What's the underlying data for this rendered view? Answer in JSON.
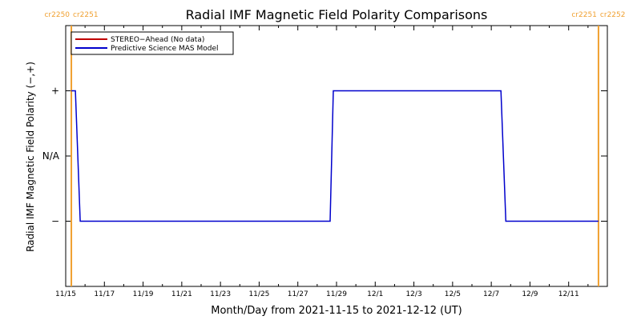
{
  "chart_data": {
    "type": "line",
    "title": "Radial IMF Magnetic Field Polarity Comparisons",
    "xlabel": "Month/Day from 2021-11-15 to 2021-12-12 (UT)",
    "ylabel": "Radial IMF Magnetic Field Polarity (−,+)",
    "x_axis": {
      "start": "2021-11-15",
      "end": "2021-12-12",
      "ticks": [
        "11/15",
        "11/17",
        "11/19",
        "11/21",
        "11/23",
        "11/25",
        "11/27",
        "11/29",
        "12/1",
        "12/3",
        "12/5",
        "12/7",
        "12/9",
        "12/11"
      ]
    },
    "y_axis": {
      "ticks": [
        "+",
        "N/A",
        "−"
      ],
      "values": [
        1,
        0,
        -1
      ],
      "ylim": [
        -2,
        2
      ]
    },
    "carrington_markers": [
      {
        "label_left": "cr2250",
        "label_right": "cr2251",
        "x": "2021-11-15T07:00"
      },
      {
        "label_left": "cr2251",
        "label_right": "cr2252",
        "x": "2021-12-12T13:00"
      }
    ],
    "legend": {
      "placement": "top-left",
      "entries": [
        {
          "label": "STEREO−Ahead (No data)",
          "color": "#c00000"
        },
        {
          "label": "Predictive Science MAS Model",
          "color": "#0000cc"
        }
      ]
    },
    "series": [
      {
        "name": "Predictive Science MAS Model",
        "color": "#0000cc",
        "points": [
          [
            "2021-11-15T07:00",
            1
          ],
          [
            "2021-11-15T12:00",
            1
          ],
          [
            "2021-11-15T18:00",
            -1
          ],
          [
            "2021-11-28T16:00",
            -1
          ],
          [
            "2021-11-28T20:00",
            1
          ],
          [
            "2021-12-07T12:00",
            1
          ],
          [
            "2021-12-07T18:00",
            -1
          ],
          [
            "2021-12-12T13:00",
            -1
          ]
        ]
      }
    ],
    "colors": {
      "marker": "#f0a030",
      "axis": "#000000"
    }
  }
}
